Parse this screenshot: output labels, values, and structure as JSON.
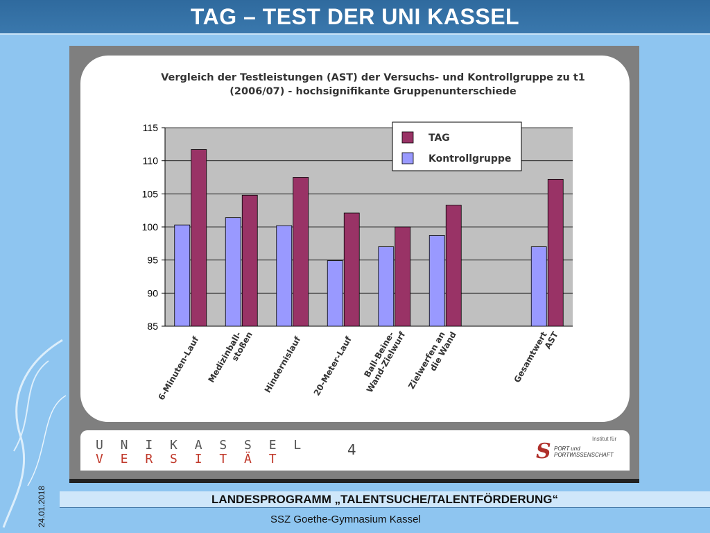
{
  "header": {
    "title": "TAG – TEST DER UNI KASSEL"
  },
  "chart_data": {
    "type": "bar",
    "title": "Vergleich der Testleistungen (AST) der Versuchs- und Kontrollgruppe zu t1 (2006/07) - hochsignifikante Gruppenunterschiede",
    "title_lines": [
      "Vergleich der Testleistungen (AST) der Versuchs- und Kontrollgruppe zu t1",
      "(2006/07) - hochsignifikante Gruppenunterschiede"
    ],
    "categories": [
      "6-Minuten-Lauf",
      "Medizinball-\nstoßen",
      "Hindernislauf",
      "20-Meter-Lauf",
      "Ball-Beine-\nWand-Zielwurf",
      "Zielwerfen an\ndie Wand",
      "",
      "Gesamtwert\nAST"
    ],
    "series": [
      {
        "name": "Kontrollgruppe",
        "color": "#9999ff",
        "values": [
          100.3,
          101.4,
          100.2,
          94.9,
          97.0,
          98.7,
          null,
          97.0
        ]
      },
      {
        "name": "TAG",
        "color": "#993366",
        "values": [
          111.7,
          104.8,
          107.5,
          102.1,
          100.0,
          103.3,
          null,
          107.2
        ]
      }
    ],
    "legend_order": [
      "TAG",
      "Kontrollgruppe"
    ],
    "ylim": [
      85,
      115
    ],
    "yticks": [
      85,
      90,
      95,
      100,
      105,
      110,
      115
    ],
    "grid": true,
    "legend": "top-right",
    "plot_background": "#c0c0c0"
  },
  "slide_footer": {
    "uni_line1": "U N I K A S S E L",
    "uni_line2": "V E R S I T Ä T",
    "page_number": "4",
    "sport_small": "Institut für",
    "sport_letter": "S",
    "sport_text": "PORT und PORTWISSENSCHAFT"
  },
  "footer": {
    "program": "LANDESPROGRAMM „TALENTSUCHE/TALENTFÖRDERUNG“",
    "school": "SSZ Goethe-Gymnasium Kassel",
    "date": "24.01.2018"
  }
}
